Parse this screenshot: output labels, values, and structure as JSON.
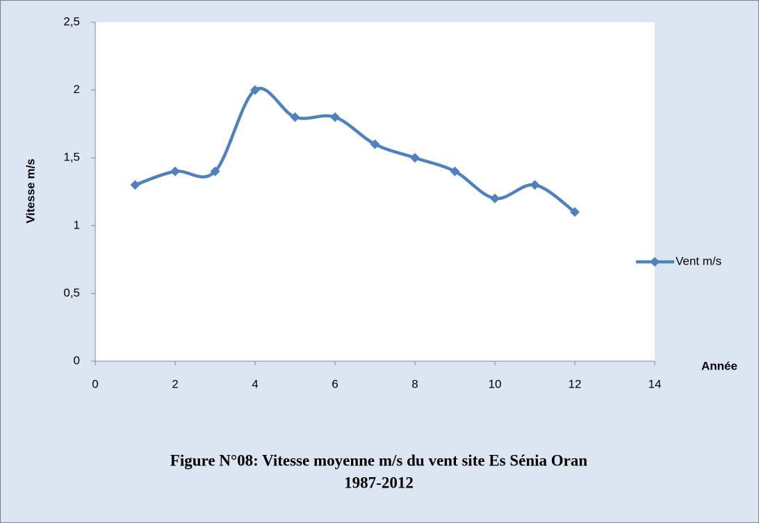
{
  "chart_data": {
    "type": "line",
    "title": [
      "Figure N°08: Vitesse moyenne m/s du vent  site Es Sénia Oran",
      "1987-2012"
    ],
    "xlabel": "Année",
    "ylabel": "Vitesse m/s",
    "x": [
      1,
      2,
      3,
      4,
      5,
      6,
      7,
      8,
      9,
      10,
      11,
      12
    ],
    "series": [
      {
        "name": "Vent m/s",
        "color": "#4f81bd",
        "values": [
          1.3,
          1.4,
          1.4,
          2,
          1.8,
          1.8,
          1.6,
          1.5,
          1.4,
          1.2,
          1.3,
          1.1
        ]
      }
    ],
    "xlim": [
      0,
      14
    ],
    "xticks": [
      0,
      2,
      4,
      6,
      8,
      10,
      12,
      14
    ],
    "ylim": [
      0,
      2.5
    ],
    "yticks": [
      0,
      {
        "value": 0.5,
        "label": "0,5"
      },
      1,
      {
        "value": 1.5,
        "label": "1,5"
      },
      2,
      {
        "value": 2.5,
        "label": "2,5"
      }
    ],
    "legend": "right"
  }
}
